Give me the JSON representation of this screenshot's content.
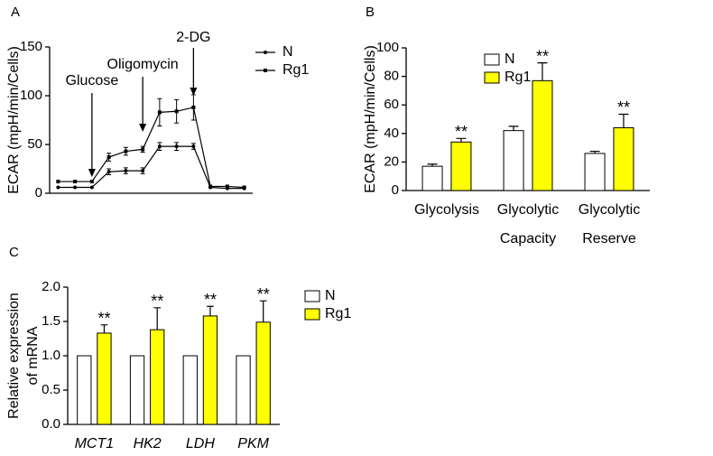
{
  "chart_data": [
    {
      "type": "line",
      "panel_label": "A",
      "y_label": "ECAR (mpH/min/Cells)",
      "categories": [
        null,
        null,
        null,
        null,
        null,
        null,
        null,
        null,
        null,
        null,
        null,
        null
      ],
      "series": [
        {
          "name": "N",
          "color": "#000000",
          "marker": "circle",
          "values": [
            6,
            6,
            6,
            22,
            23,
            23,
            48,
            48,
            48,
            6,
            5,
            5
          ],
          "errors": [
            null,
            null,
            null,
            3,
            3,
            3,
            4,
            4,
            3,
            null,
            null,
            null
          ]
        },
        {
          "name": "Rg1",
          "color": "#000000",
          "marker": "square",
          "values": [
            12,
            12,
            12,
            37,
            43,
            45,
            83,
            84,
            88,
            7,
            7,
            6
          ],
          "errors": [
            null,
            null,
            null,
            4,
            4,
            3,
            14,
            12,
            13,
            null,
            null,
            null
          ]
        }
      ],
      "annotations": [
        "Glucose",
        "Oligomycin",
        "2-DG"
      ],
      "ylim": [
        0,
        150
      ],
      "yticks": [
        0,
        50,
        100,
        150
      ]
    },
    {
      "type": "bar",
      "panel_label": "B",
      "y_label": "ECAR (mpH/min/Cells)",
      "categories": [
        "Glycolysis",
        "Glycolytic Capacity",
        "Glycolytic Reserve"
      ],
      "series": [
        {
          "name": "N",
          "color": "#ffffff",
          "values": [
            17,
            42,
            26
          ],
          "errors": [
            1.5,
            3,
            1.5
          ]
        },
        {
          "name": "Rg1",
          "color": "#ffff00",
          "values": [
            34,
            77,
            44
          ],
          "errors": [
            2.5,
            12.5,
            9.5
          ]
        }
      ],
      "significance": [
        "**",
        "**",
        "**"
      ],
      "ylim": [
        0,
        100
      ],
      "yticks": [
        0,
        20,
        40,
        60,
        80,
        100
      ]
    },
    {
      "type": "bar",
      "panel_label": "C",
      "y_label": [
        "Relative expression",
        "of mRNA"
      ],
      "categories": [
        "MCT1",
        "HK2",
        "LDH",
        "PKM"
      ],
      "italic_categories": true,
      "series": [
        {
          "name": "N",
          "color": "#ffffff",
          "values": [
            1,
            1,
            1,
            1
          ],
          "errors": [
            null,
            null,
            null,
            null
          ]
        },
        {
          "name": "Rg1",
          "color": "#ffff00",
          "values": [
            1.33,
            1.38,
            1.58,
            1.49
          ],
          "errors": [
            0.12,
            0.32,
            0.14,
            0.31
          ]
        }
      ],
      "significance": [
        "**",
        "**",
        "**",
        "**"
      ],
      "ylim": [
        0,
        2
      ],
      "yticks": [
        {
          "value": 0,
          "label": "0.0"
        },
        0.5,
        {
          "value": 1,
          "label": "1.0"
        },
        1.5,
        {
          "value": 2,
          "label": "2.0"
        }
      ]
    }
  ]
}
